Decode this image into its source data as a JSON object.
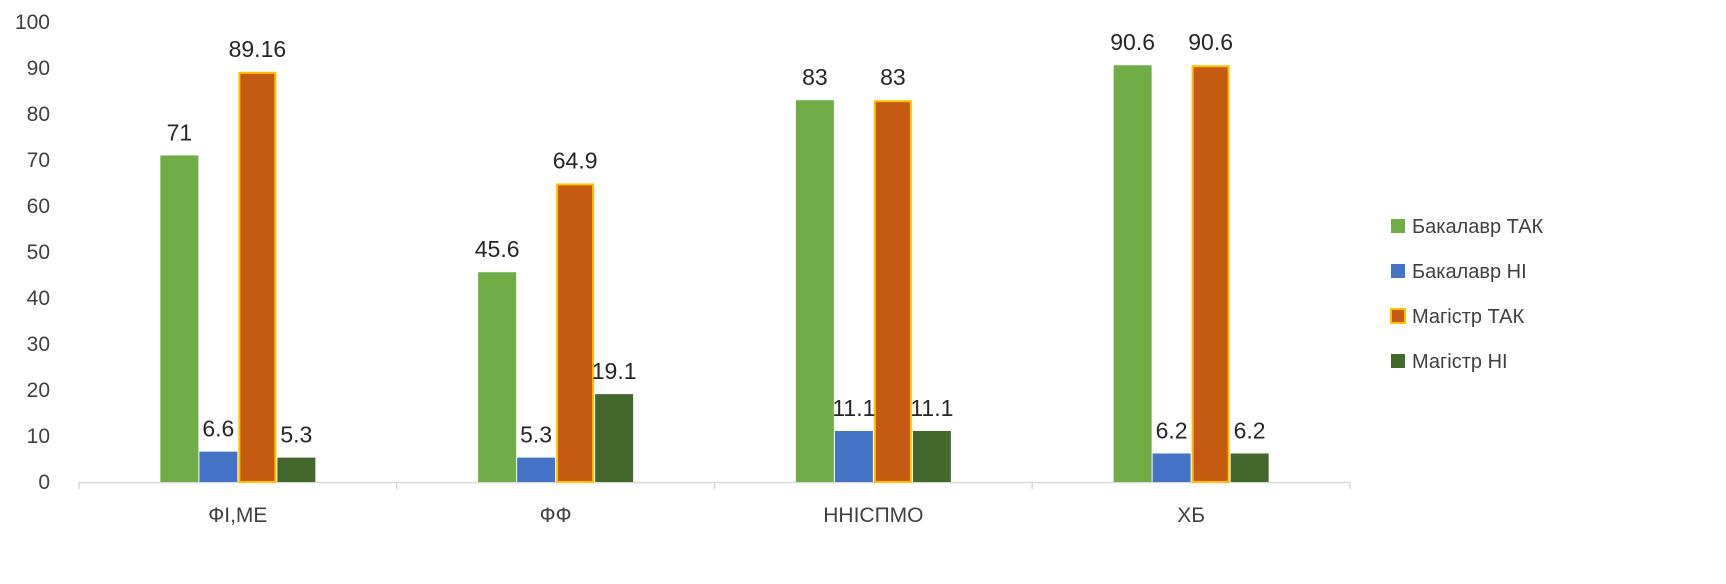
{
  "chart_data": {
    "type": "bar",
    "title": "",
    "xlabel": "",
    "ylabel": "",
    "categories": [
      "ФІ,МЕ",
      "ФФ",
      "ННІСПМО",
      "ХБ"
    ],
    "series": [
      {
        "name": "Бакалавр ТАК",
        "color": "#70ad47",
        "values": [
          71,
          45.6,
          83,
          90.6
        ],
        "labels": [
          "71",
          "45.6",
          "83",
          "90.6"
        ]
      },
      {
        "name": "Бакалавр НІ",
        "color": "#4472c4",
        "values": [
          6.6,
          5.3,
          11.1,
          6.2
        ],
        "labels": [
          "6.6",
          "5.3",
          "11.1",
          "6.2"
        ]
      },
      {
        "name": "Магістр ТАК",
        "color": "#c55a11",
        "border": "#ffc000",
        "values": [
          89.16,
          64.9,
          83,
          90.6
        ],
        "labels": [
          "89.16",
          "64.9",
          "83",
          "90.6"
        ]
      },
      {
        "name": "Магістр НІ",
        "color": "#43682b",
        "values": [
          5.3,
          19.1,
          11.1,
          6.2
        ],
        "labels": [
          "5.3",
          "19.1",
          "11.1",
          "6.2"
        ]
      }
    ],
    "ylim": [
      0,
      100
    ],
    "yticks": [
      "0",
      "10",
      "20",
      "30",
      "40",
      "50",
      "60",
      "70",
      "80",
      "90",
      "100"
    ],
    "grid": false,
    "legend_position": "right"
  }
}
